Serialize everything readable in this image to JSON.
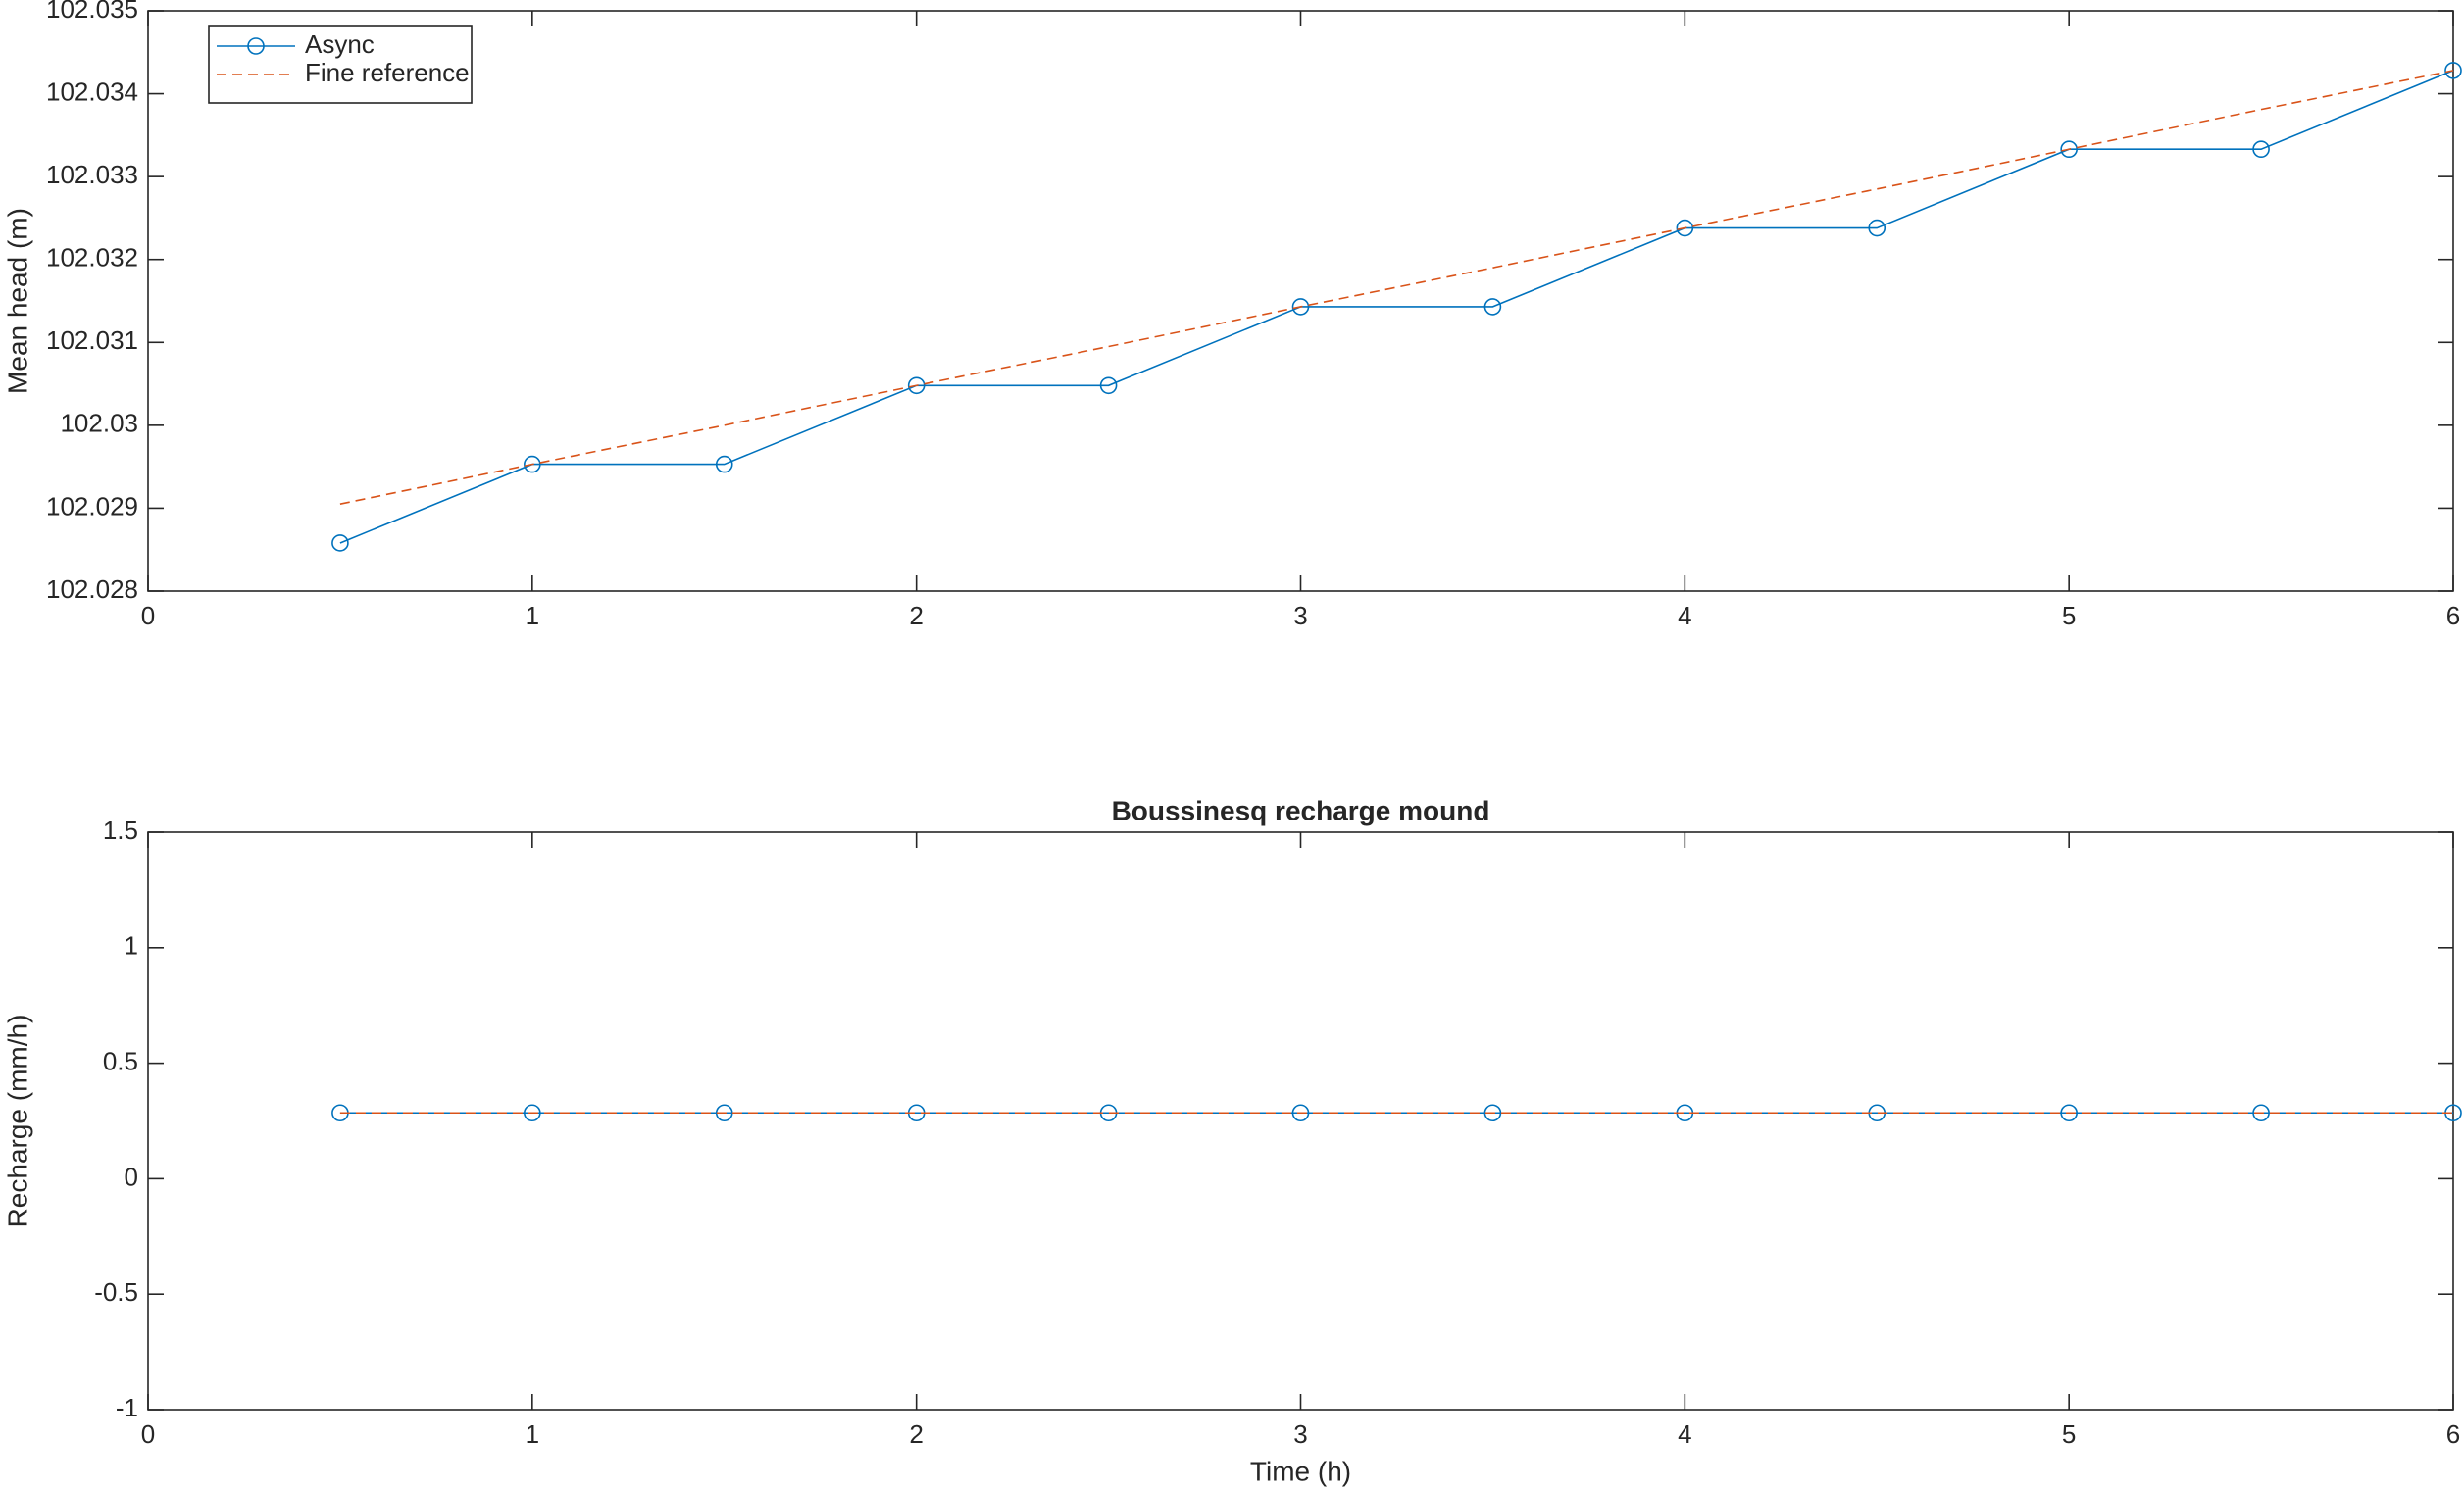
{
  "chart_data": [
    {
      "type": "line",
      "ylabel": "Mean head (m)",
      "x": [
        0.5,
        1,
        1.5,
        2,
        2.5,
        3,
        3.5,
        4,
        4.5,
        5,
        5.5,
        6
      ],
      "series": [
        {
          "name": "Async",
          "color": "#0072bd",
          "marker": "circle",
          "dashed": false,
          "values": [
            102.02858,
            102.02953,
            102.02953,
            102.03048,
            102.03048,
            102.03143,
            102.03143,
            102.03238,
            102.03238,
            102.03333,
            102.03333,
            102.03428
          ]
        },
        {
          "name": "Fine reference",
          "color": "#d95319",
          "marker": "none",
          "dashed": true,
          "values": [
            102.02905,
            102.02953,
            102.03,
            102.03048,
            102.03095,
            102.03143,
            102.0319,
            102.03238,
            102.03285,
            102.03333,
            102.03381,
            102.03428
          ]
        }
      ],
      "xlim": [
        0,
        6
      ],
      "xticks": [
        0,
        1,
        2,
        3,
        4,
        5,
        6
      ],
      "ylim": [
        102.028,
        102.035
      ],
      "yticks": [
        102.028,
        102.029,
        102.03,
        102.031,
        102.032,
        102.033,
        102.034,
        102.035
      ],
      "legend": "northwest"
    },
    {
      "type": "line",
      "title": "Boussinesq recharge mound",
      "xlabel": "Time (h)",
      "ylabel": "Recharge (mm/h)",
      "x": [
        0.5,
        1,
        1.5,
        2,
        2.5,
        3,
        3.5,
        4,
        4.5,
        5,
        5.5,
        6
      ],
      "series": [
        {
          "color": "#0072bd",
          "marker": "circle",
          "dashed": false,
          "values": [
            0.285,
            0.285,
            0.285,
            0.285,
            0.285,
            0.285,
            0.285,
            0.285,
            0.285,
            0.285,
            0.285,
            0.285
          ]
        },
        {
          "color": "#d95319",
          "marker": "none",
          "dashed": true,
          "values": [
            0.285,
            0.285,
            0.285,
            0.285,
            0.285,
            0.285,
            0.285,
            0.285,
            0.285,
            0.285,
            0.285,
            0.285
          ]
        }
      ],
      "xlim": [
        0,
        6
      ],
      "xticks": [
        0,
        1,
        2,
        3,
        4,
        5,
        6
      ],
      "ylim": [
        -1,
        1.5
      ],
      "yticks": [
        -1,
        -0.5,
        0,
        0.5,
        1,
        1.5
      ]
    }
  ]
}
